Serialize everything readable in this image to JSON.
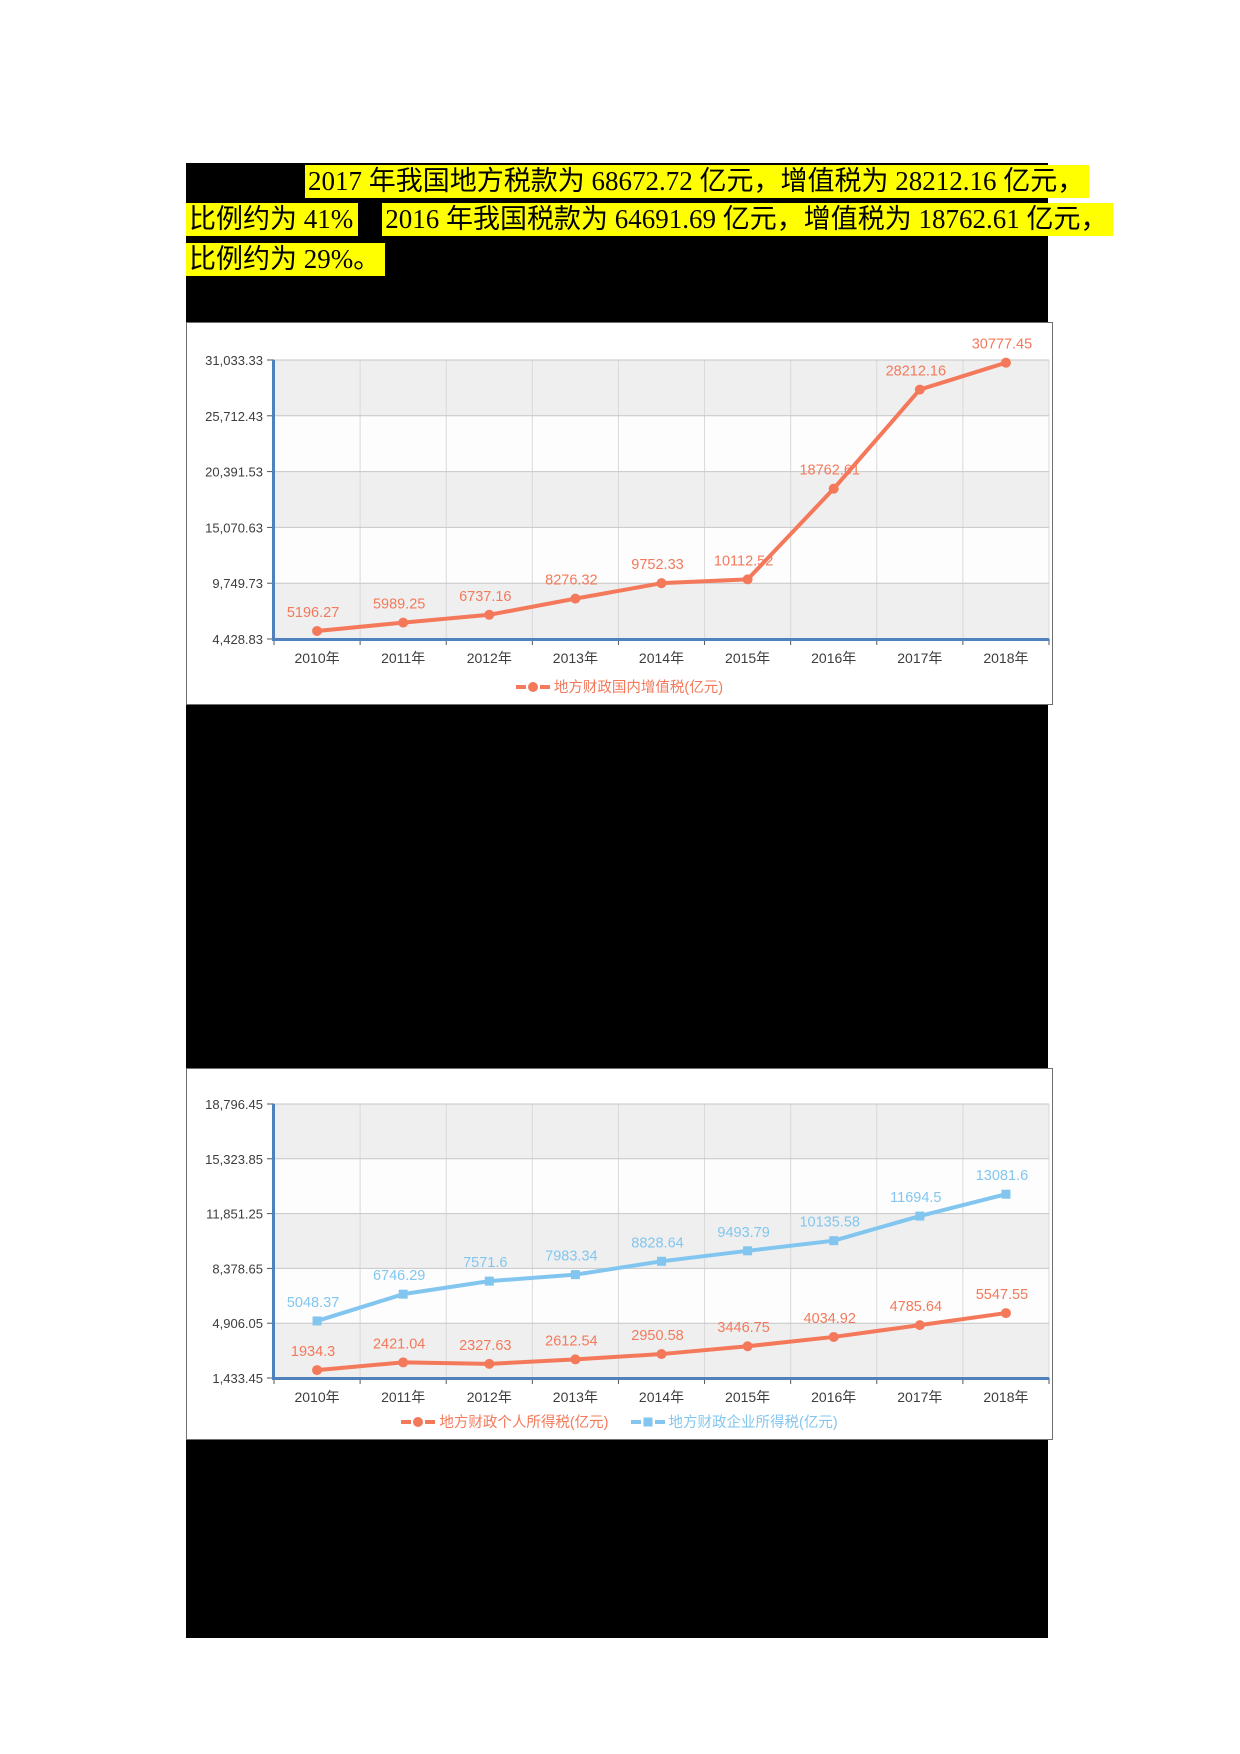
{
  "paragraph": {
    "line1": "2017 年我国地方税款为 68672.72 亿元，增值税为 28212.16 亿元，",
    "line2a": "比例约为 41%",
    "line2b": "2016 年我国税款为 64691.69 亿元，增值税为 18762.61 亿元，",
    "line3": "比例约为 29%。",
    "highlight_color": "#ffff00"
  },
  "colors": {
    "axis_blue": "#4f81bd",
    "orange_series": "#f4795b",
    "blue_series": "#82c6f0",
    "band_gray": "#efefef",
    "band_white": "#fdfdfd",
    "grid_vertical": "#d9d9d9",
    "grid_horizontal": "#c6c6c6",
    "tick_text": "#3d3d3d",
    "redaction_black": "#000000"
  },
  "chart_data": [
    {
      "type": "line",
      "title": "",
      "categories": [
        "2010年",
        "2011年",
        "2012年",
        "2013年",
        "2014年",
        "2015年",
        "2016年",
        "2017年",
        "2018年"
      ],
      "series": [
        {
          "name": "地方财政国内增值税(亿元)",
          "color": "#f4795b",
          "marker": "circle",
          "values": [
            5196.27,
            5989.25,
            6737.16,
            8276.32,
            9752.33,
            10112.52,
            18762.61,
            28212.16,
            30777.45
          ]
        }
      ],
      "y_ticks": [
        "4,428.83",
        "9,749.73",
        "15,070.63",
        "20,391.53",
        "25,712.43",
        "31,033.33"
      ],
      "y_min": 4428.83,
      "y_max": 31033.33,
      "grid": true,
      "legend_position": "bottom",
      "xlabel": "",
      "ylabel": ""
    },
    {
      "type": "line",
      "title": "",
      "categories": [
        "2010年",
        "2011年",
        "2012年",
        "2013年",
        "2014年",
        "2015年",
        "2016年",
        "2017年",
        "2018年"
      ],
      "series": [
        {
          "name": "地方财政个人所得税(亿元)",
          "color": "#f4795b",
          "marker": "circle",
          "values": [
            1934.3,
            2421.04,
            2327.63,
            2612.54,
            2950.58,
            3446.75,
            4034.92,
            4785.64,
            5547.55
          ]
        },
        {
          "name": "地方财政企业所得税(亿元)",
          "color": "#82c6f0",
          "marker": "square",
          "values": [
            5048.37,
            6746.29,
            7571.6,
            7983.34,
            8828.64,
            9493.79,
            10135.58,
            11694.5,
            13081.6
          ]
        }
      ],
      "y_ticks": [
        "1,433.45",
        "4,906.05",
        "8,378.65",
        "11,851.25",
        "15,323.85",
        "18,796.45"
      ],
      "y_min": 1433.45,
      "y_max": 18796.45,
      "grid": true,
      "legend_position": "bottom",
      "xlabel": "",
      "ylabel": ""
    }
  ]
}
